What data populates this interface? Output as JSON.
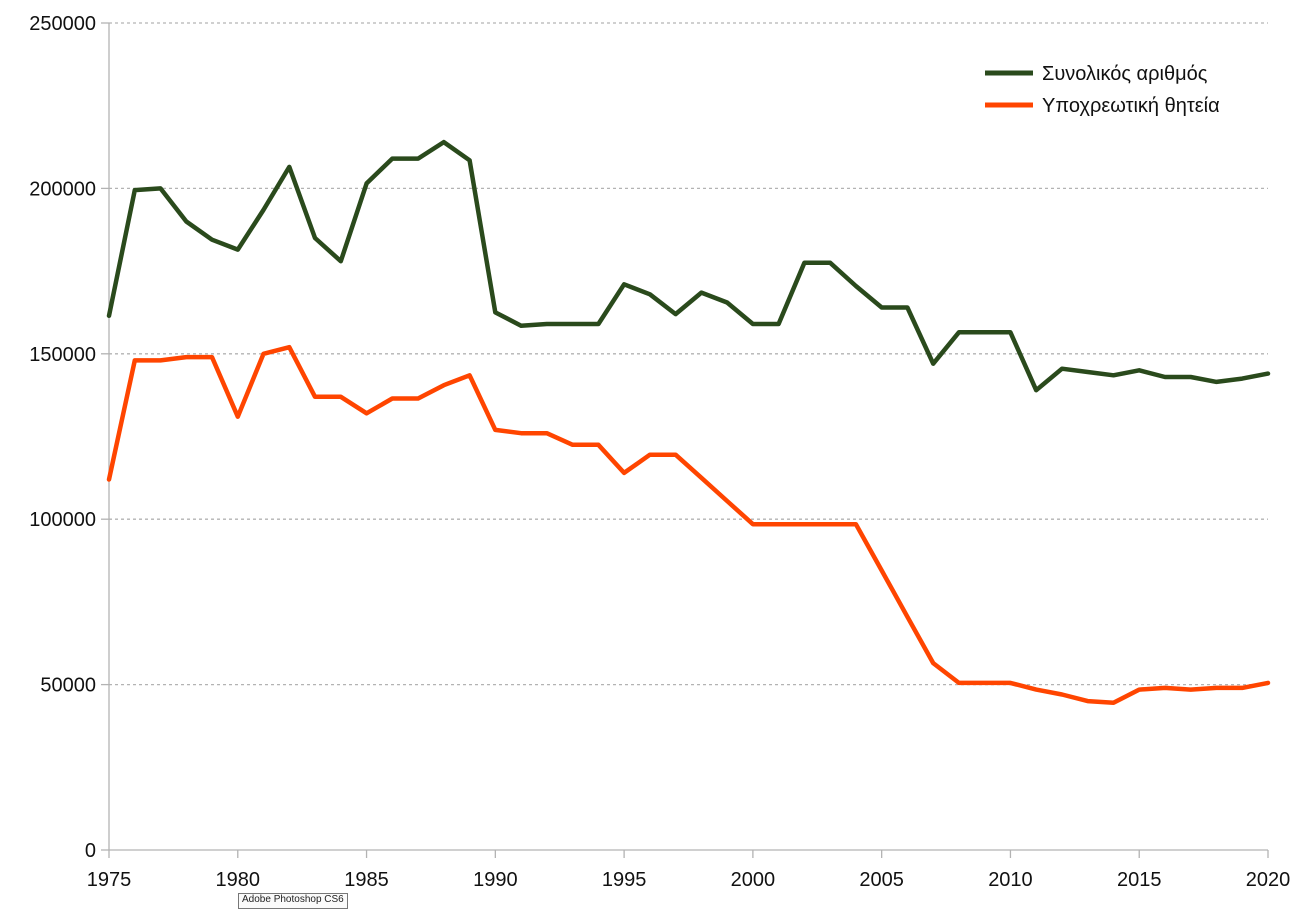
{
  "chart_data": {
    "type": "line",
    "title": "",
    "xlabel": "",
    "ylabel": "",
    "xlim": [
      1975,
      2020
    ],
    "ylim": [
      0,
      250000
    ],
    "x_ticks": [
      1975,
      1980,
      1985,
      1990,
      1995,
      2000,
      2005,
      2010,
      2015,
      2020
    ],
    "y_ticks": [
      0,
      50000,
      100000,
      150000,
      200000,
      250000
    ],
    "grid": "horizontal dashed",
    "legend_position": "top-right",
    "x": [
      1975,
      1976,
      1977,
      1978,
      1979,
      1980,
      1981,
      1982,
      1983,
      1984,
      1985,
      1986,
      1987,
      1988,
      1989,
      1990,
      1991,
      1992,
      1993,
      1994,
      1995,
      1996,
      1997,
      1998,
      1999,
      2000,
      2001,
      2002,
      2003,
      2004,
      2005,
      2006,
      2007,
      2008,
      2009,
      2010,
      2011,
      2012,
      2013,
      2014,
      2015,
      2016,
      2017,
      2018,
      2019,
      2020
    ],
    "series": [
      {
        "name": "Συνολικός αριθμός",
        "color": "#2a4a1c",
        "values": [
          161500,
          199500,
          200000,
          190000,
          184500,
          181500,
          193500,
          206500,
          185000,
          178000,
          201500,
          209000,
          209000,
          214000,
          208500,
          162500,
          158500,
          159000,
          159000,
          159000,
          171000,
          168000,
          162000,
          168500,
          165500,
          159000,
          159000,
          177500,
          177500,
          170500,
          164000,
          164000,
          147000,
          156500,
          156500,
          156500,
          139000,
          145500,
          144500,
          143500,
          145000,
          143000,
          143000,
          141500,
          142500,
          144000
        ]
      },
      {
        "name": "Υποχρεωτική θητεία",
        "color": "#ff4500",
        "values": [
          112000,
          148000,
          148000,
          149000,
          149000,
          131000,
          150000,
          152000,
          137000,
          137000,
          132000,
          136500,
          136500,
          140500,
          143500,
          127000,
          126000,
          126000,
          122500,
          122500,
          114000,
          119500,
          119500,
          112500,
          105500,
          98500,
          98500,
          98500,
          98500,
          98500,
          84500,
          70500,
          56500,
          50500,
          50500,
          50500,
          48500,
          47000,
          45000,
          44500,
          48500,
          49000,
          48500,
          49000,
          49000,
          50500
        ]
      }
    ]
  },
  "overlay": {
    "tooltip_text": "Adobe Photoshop CS6"
  }
}
